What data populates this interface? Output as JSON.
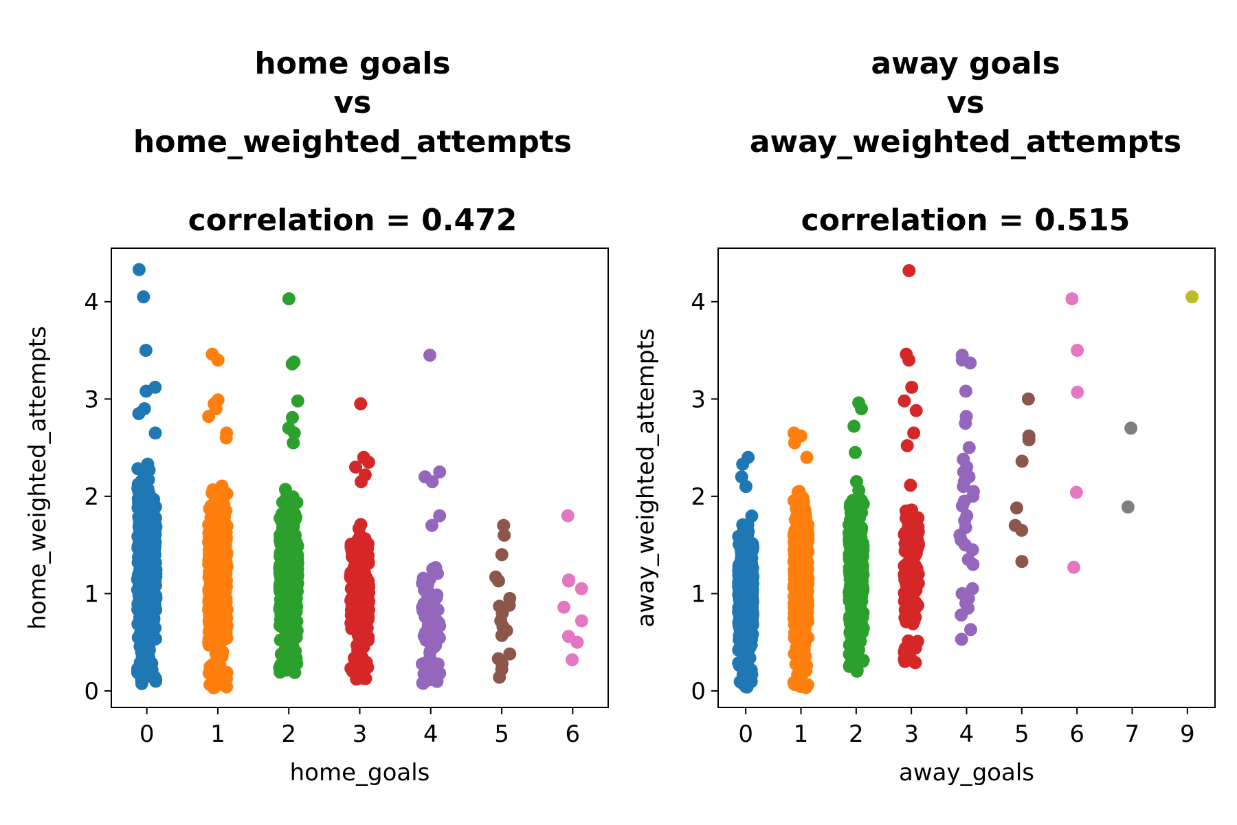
{
  "chart_data": [
    {
      "type": "scatter",
      "subtype": "stripplot",
      "title_lines": [
        "home goals",
        "vs",
        "home_weighted_attempts",
        "",
        "correlation = 0.472"
      ],
      "xlabel": "home_goals",
      "ylabel": "home_weighted_attempts",
      "categories": [
        "0",
        "1",
        "2",
        "3",
        "4",
        "5",
        "6"
      ],
      "yticks": [
        "0",
        "1",
        "2",
        "3",
        "4"
      ],
      "ylim": [
        -0.17,
        4.55
      ],
      "grid": false,
      "series": [
        {
          "category": "0",
          "color": "#1f77b4",
          "count": 420,
          "min": 0.05,
          "max": 2.6,
          "outliers": [
            4.33,
            4.05,
            3.5,
            3.12,
            3.08,
            2.9,
            2.85,
            2.65
          ]
        },
        {
          "category": "1",
          "color": "#ff7f0e",
          "count": 520,
          "min": 0.02,
          "max": 2.4,
          "outliers": [
            3.46,
            3.4,
            2.99,
            2.95,
            2.9,
            2.82,
            2.65,
            2.6
          ]
        },
        {
          "category": "2",
          "color": "#2ca02c",
          "count": 380,
          "min": 0.13,
          "max": 2.3,
          "outliers": [
            4.03,
            3.38,
            3.36,
            2.98,
            2.81,
            2.7,
            2.65,
            2.55
          ]
        },
        {
          "category": "3",
          "color": "#d62728",
          "count": 180,
          "min": 0.09,
          "max": 2.05,
          "outliers": [
            2.95,
            2.4,
            2.35,
            2.3,
            2.22,
            2.15
          ]
        },
        {
          "category": "4",
          "color": "#9467bd",
          "count": 60,
          "min": 0.07,
          "max": 1.5,
          "outliers": [
            3.45,
            2.25,
            2.2,
            2.15,
            1.8,
            1.7
          ]
        },
        {
          "category": "5",
          "color": "#8c564b",
          "points": [
            1.7,
            1.6,
            1.4,
            1.17,
            1.13,
            0.95,
            0.88,
            0.87,
            0.8,
            0.72,
            0.66,
            0.62,
            0.57,
            0.38,
            0.33,
            0.28,
            0.22,
            0.14
          ]
        },
        {
          "category": "6",
          "color": "#e377c2",
          "points": [
            1.8,
            1.14,
            1.13,
            1.05,
            0.86,
            0.72,
            0.56,
            0.5,
            0.32
          ]
        }
      ]
    },
    {
      "type": "scatter",
      "subtype": "stripplot",
      "title_lines": [
        "away goals",
        "vs",
        "away_weighted_attempts",
        "",
        "correlation = 0.515"
      ],
      "xlabel": "away_goals",
      "ylabel": "away_weighted_attempts",
      "categories": [
        "0",
        "1",
        "2",
        "3",
        "4",
        "5",
        "6",
        "7",
        "9"
      ],
      "yticks": [
        "0",
        "1",
        "2",
        "3",
        "4"
      ],
      "ylim": [
        -0.17,
        4.55
      ],
      "grid": false,
      "series": [
        {
          "category": "0",
          "color": "#1f77b4",
          "count": 480,
          "min": 0.04,
          "max": 1.95,
          "outliers": [
            2.4,
            2.33,
            2.2,
            2.1
          ]
        },
        {
          "category": "1",
          "color": "#ff7f0e",
          "count": 450,
          "min": 0.03,
          "max": 2.3,
          "outliers": [
            2.65,
            2.62,
            2.55,
            2.4
          ]
        },
        {
          "category": "2",
          "color": "#2ca02c",
          "count": 300,
          "min": 0.2,
          "max": 2.3,
          "outliers": [
            2.96,
            2.9,
            2.72,
            2.45
          ]
        },
        {
          "category": "3",
          "color": "#d62728",
          "count": 150,
          "min": 0.27,
          "max": 2.3,
          "outliers": [
            4.32,
            3.46,
            3.4,
            3.12,
            2.98,
            2.88,
            2.65,
            2.52
          ]
        },
        {
          "category": "4",
          "color": "#9467bd",
          "points": [
            3.45,
            3.4,
            3.37,
            3.08,
            2.82,
            2.75,
            2.5,
            2.38,
            2.3,
            2.25,
            2.2,
            2.15,
            2.1,
            2.05,
            2.0,
            1.95,
            1.9,
            1.8,
            1.75,
            1.68,
            1.6,
            1.55,
            1.5,
            1.45,
            1.35,
            1.3,
            1.05,
            1.0,
            0.95,
            0.9,
            0.85,
            0.78,
            0.63,
            0.53
          ]
        },
        {
          "category": "5",
          "color": "#8c564b",
          "points": [
            3.0,
            2.62,
            2.58,
            2.36,
            1.88,
            1.7,
            1.65,
            1.33
          ]
        },
        {
          "category": "6",
          "color": "#e377c2",
          "points": [
            4.03,
            3.5,
            3.07,
            2.04,
            1.27
          ]
        },
        {
          "category": "7",
          "color": "#7f7f7f",
          "points": [
            2.7,
            1.89
          ]
        },
        {
          "category": "9",
          "color": "#bcbd22",
          "points": [
            4.05
          ]
        }
      ]
    }
  ]
}
